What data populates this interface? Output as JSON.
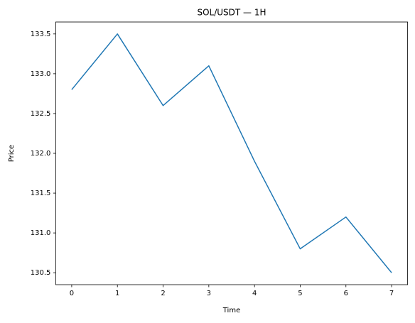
{
  "chart_data": {
    "type": "line",
    "title": "SOL/USDT — 1H",
    "xlabel": "Time",
    "ylabel": "Price",
    "x": [
      0,
      1,
      2,
      3,
      4,
      5,
      6,
      7
    ],
    "series": [
      {
        "color": "#1f77b4",
        "values": [
          132.8,
          133.5,
          132.6,
          133.1,
          131.9,
          130.8,
          131.2,
          130.5
        ]
      }
    ],
    "xlim": [
      -0.35,
      7.35
    ],
    "xticks": [
      0,
      1,
      2,
      3,
      4,
      5,
      6,
      7
    ],
    "ylim": [
      130.35,
      133.65
    ],
    "yticks": [
      130.5,
      {
        "value": 131,
        "label": "131.0"
      },
      131.5,
      {
        "value": 132,
        "label": "132.0"
      },
      132.5,
      {
        "value": 133,
        "label": "133.0"
      },
      133.5
    ],
    "grid": false
  }
}
